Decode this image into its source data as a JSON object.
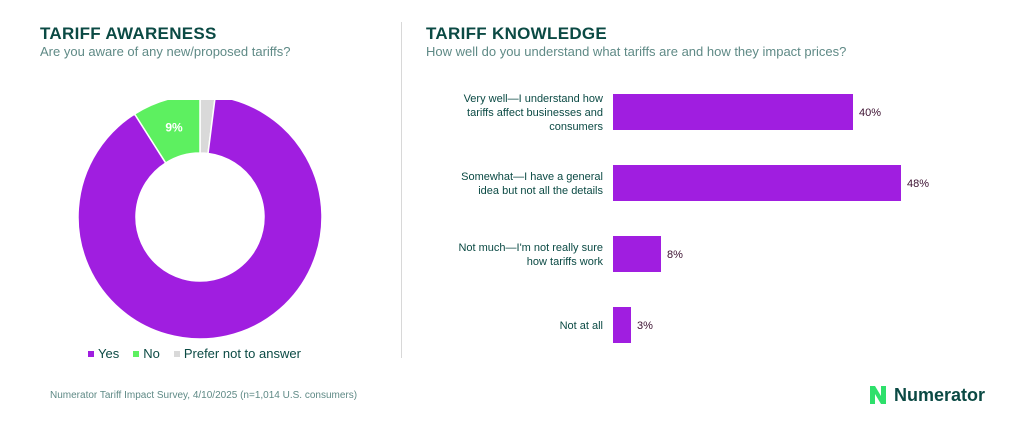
{
  "left": {
    "title": "TARIFF AWARENESS",
    "subtitle": "Are you aware of any new/proposed tariffs?"
  },
  "right": {
    "title": "TARIFF KNOWLEDGE",
    "subtitle": "How well do you understand what tariffs are and how they impact prices?"
  },
  "footnote": "Numerator Tariff Impact Survey, 4/10/2025 (n=1,014 U.S. consumers)",
  "brand": {
    "name": "Numerator",
    "logo_icon": "numerator-n-logo",
    "logo_color": "#2ee06b"
  },
  "colors": {
    "purple": "#a01ee0",
    "green": "#5df060",
    "gray": "#d9d9d9",
    "dark_label": "#3b1030"
  },
  "chart_data": [
    {
      "type": "pie",
      "donut": true,
      "title": "TARIFF AWARENESS",
      "subtitle": "Are you aware of any new/proposed tariffs?",
      "slices": [
        {
          "label": "Yes",
          "value": 89,
          "display": "89%",
          "color": "#a01ee0"
        },
        {
          "label": "No",
          "value": 9,
          "display": "9%",
          "color": "#5df060"
        },
        {
          "label": "Prefer not to answer",
          "value": 2,
          "display": "",
          "color": "#d9d9d9"
        }
      ],
      "legend": "bottom"
    },
    {
      "type": "bar",
      "orientation": "horizontal",
      "title": "TARIFF KNOWLEDGE",
      "subtitle": "How well do you understand what tariffs are and how they impact prices?",
      "categories": [
        [
          "Very well—I understand how",
          "tariffs affect businesses and",
          "consumers"
        ],
        [
          "Somewhat—I have a general",
          "idea but not all the details"
        ],
        [
          "Not much—I'm not really sure",
          "how tariffs work"
        ],
        [
          "Not at all"
        ]
      ],
      "values": [
        40,
        48,
        8,
        3
      ],
      "value_labels": [
        "40%",
        "48%",
        "8%",
        "3%"
      ],
      "color": "#a01ee0",
      "xlim": [
        0,
        50
      ],
      "grid": false
    }
  ]
}
